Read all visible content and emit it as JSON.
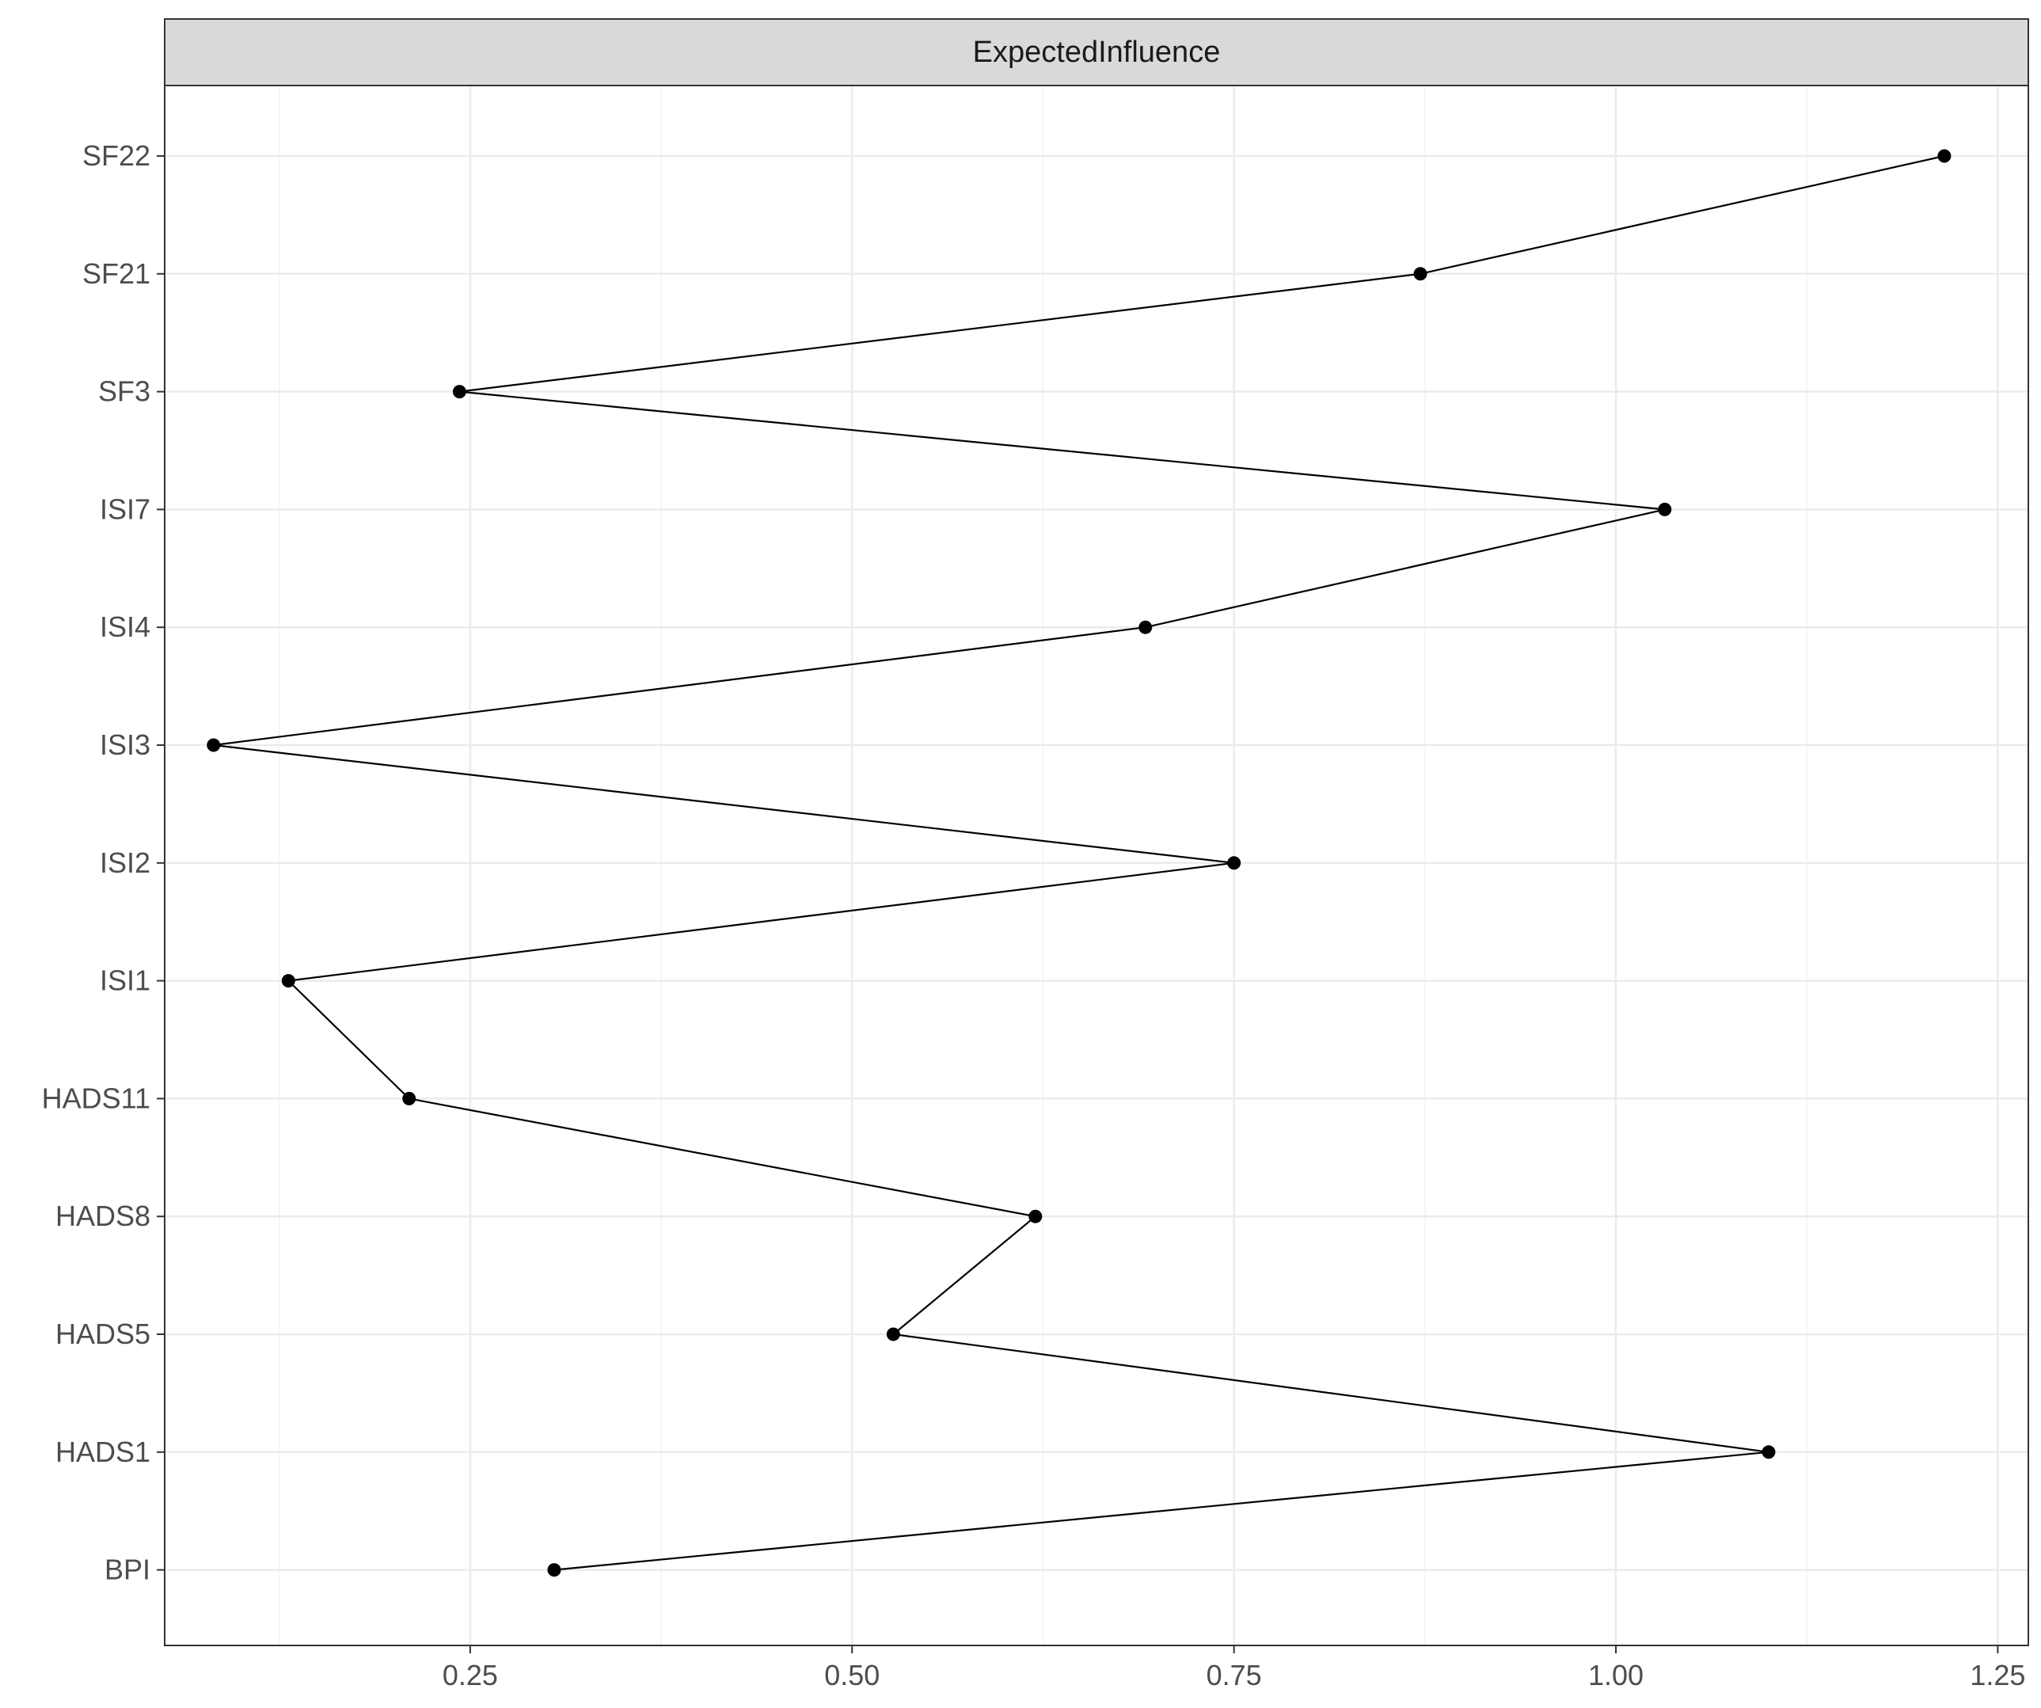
{
  "chart_data": {
    "type": "line",
    "panel_title": "ExpectedInfluence",
    "categories": [
      "BPI",
      "HADS1",
      "HADS5",
      "HADS8",
      "HADS11",
      "ISI1",
      "ISI2",
      "ISI3",
      "ISI4",
      "ISI7",
      "SF3",
      "SF21",
      "SF22"
    ],
    "values": [
      0.305,
      1.1,
      0.527,
      0.62,
      0.21,
      0.131,
      0.75,
      0.082,
      0.692,
      1.032,
      0.243,
      0.872,
      1.215
    ],
    "xlim": [
      0.05,
      1.27
    ],
    "x_ticks": [
      0.25,
      0.5,
      0.75,
      1.0,
      1.25
    ],
    "x_tick_labels": [
      "0.25",
      "0.50",
      "0.75",
      "1.00",
      "1.25"
    ],
    "orientation": "horizontal",
    "grid": true,
    "xlabel": "",
    "ylabel": "",
    "colors": {
      "line": "#000000",
      "point": "#000000",
      "grid": "#ebebeb",
      "strip": "#d9d9d9",
      "border": "#333333"
    }
  }
}
